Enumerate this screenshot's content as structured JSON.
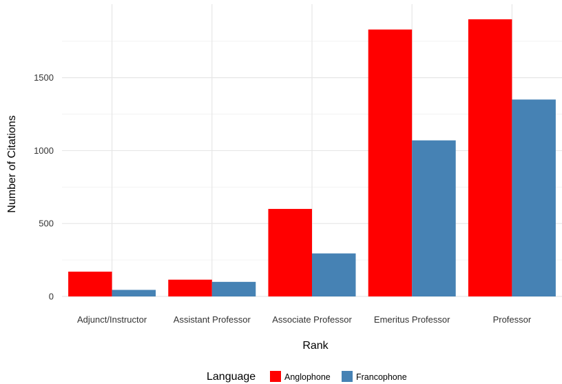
{
  "chart_data": {
    "type": "bar",
    "xlabel": "Rank",
    "ylabel": "Number of Citations",
    "categories": [
      "Adjunct/Instructor",
      "Assistant Professor",
      "Associate Professor",
      "Emeritus Professor",
      "Professor"
    ],
    "series": [
      {
        "name": "Anglophone",
        "color": "#ff0000",
        "values": [
          170,
          115,
          600,
          1830,
          1900
        ]
      },
      {
        "name": "Francophone",
        "color": "#4682b4",
        "values": [
          45,
          100,
          295,
          1070,
          1350
        ]
      }
    ],
    "ylim": [
      0,
      1900
    ],
    "yticks": [
      0,
      500,
      1000,
      1500
    ],
    "grid": true,
    "legend": {
      "title": "Language",
      "position": "bottom"
    }
  }
}
